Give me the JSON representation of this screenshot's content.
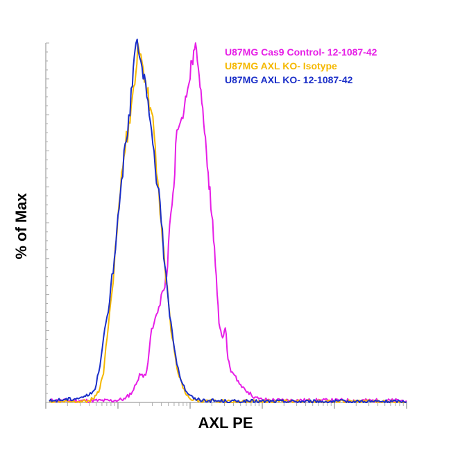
{
  "chart_data": {
    "type": "line",
    "title": "",
    "xlabel": "AXL PE",
    "ylabel": "% of Max",
    "x_scale": "log",
    "xlim": [
      0,
      100
    ],
    "ylim": [
      0,
      100
    ],
    "grid": false,
    "legend_position": "top-right",
    "series": [
      {
        "name": "U87MG Cas9 Control- 12-1087-42",
        "color": "#e61ee6",
        "points": [
          [
            1,
            0.5
          ],
          [
            19,
            0.5
          ],
          [
            22,
            1
          ],
          [
            24,
            3
          ],
          [
            25,
            5
          ],
          [
            26,
            8
          ],
          [
            27,
            7
          ],
          [
            28,
            9
          ],
          [
            29,
            18
          ],
          [
            30,
            22
          ],
          [
            31,
            25
          ],
          [
            32,
            30
          ],
          [
            33,
            32
          ],
          [
            33.5,
            35
          ],
          [
            34,
            44
          ],
          [
            35,
            55
          ],
          [
            35.5,
            60
          ],
          [
            36,
            72
          ],
          [
            37,
            77
          ],
          [
            38,
            79
          ],
          [
            38.5,
            83
          ],
          [
            39,
            85
          ],
          [
            40,
            90
          ],
          [
            40.5,
            95
          ],
          [
            41,
            98
          ],
          [
            41.5,
            100
          ],
          [
            42,
            95
          ],
          [
            42.5,
            91
          ],
          [
            43,
            87
          ],
          [
            43.5,
            82
          ],
          [
            44,
            75
          ],
          [
            44.5,
            70
          ],
          [
            45,
            64
          ],
          [
            45.5,
            60
          ],
          [
            46,
            52
          ],
          [
            46.5,
            45
          ],
          [
            47,
            38
          ],
          [
            47.5,
            30
          ],
          [
            48,
            22
          ],
          [
            48.5,
            20
          ],
          [
            49,
            18
          ],
          [
            49.5,
            20
          ],
          [
            50,
            19
          ],
          [
            50.5,
            12
          ],
          [
            51,
            10
          ],
          [
            52,
            8
          ],
          [
            53,
            6
          ],
          [
            54,
            5
          ],
          [
            55,
            4
          ],
          [
            56,
            3
          ],
          [
            57,
            2
          ],
          [
            58,
            1.5
          ],
          [
            59,
            1
          ],
          [
            60,
            0.8
          ],
          [
            62,
            0.7
          ],
          [
            65,
            0.6
          ],
          [
            100,
            0.5
          ]
        ]
      },
      {
        "name": "U87MG AXL KO- Isotype",
        "color": "#f5b800",
        "points": [
          [
            1,
            0.2
          ],
          [
            12,
            0.5
          ],
          [
            13,
            1
          ],
          [
            14,
            2
          ],
          [
            15,
            4
          ],
          [
            16,
            8
          ],
          [
            17,
            18
          ],
          [
            18,
            28
          ],
          [
            19,
            38
          ],
          [
            19.5,
            45
          ],
          [
            20,
            52
          ],
          [
            21,
            64
          ],
          [
            22,
            70
          ],
          [
            23,
            78
          ],
          [
            24,
            85
          ],
          [
            25,
            92
          ],
          [
            25.5,
            100
          ],
          [
            26,
            97
          ],
          [
            27,
            93
          ],
          [
            28,
            86
          ],
          [
            29,
            82
          ],
          [
            30,
            75
          ],
          [
            31,
            62
          ],
          [
            32,
            50
          ],
          [
            33,
            38
          ],
          [
            34,
            28
          ],
          [
            35,
            18
          ],
          [
            36,
            12
          ],
          [
            37,
            7
          ],
          [
            38,
            4
          ],
          [
            39,
            2
          ],
          [
            40,
            1
          ],
          [
            42,
            0.5
          ],
          [
            45,
            0.3
          ],
          [
            100,
            0.2
          ]
        ]
      },
      {
        "name": "U87MG AXL KO- 12-1087-42",
        "color": "#1a2ec8",
        "points": [
          [
            1,
            0.3
          ],
          [
            2,
            0.5
          ],
          [
            5,
            0.8
          ],
          [
            8,
            1
          ],
          [
            10,
            1.5
          ],
          [
            12,
            2
          ],
          [
            13,
            3
          ],
          [
            14,
            5
          ],
          [
            15,
            10
          ],
          [
            16,
            18
          ],
          [
            17,
            24
          ],
          [
            18,
            32
          ],
          [
            19,
            40
          ],
          [
            20,
            52
          ],
          [
            21,
            62
          ],
          [
            22,
            72
          ],
          [
            23,
            80
          ],
          [
            24,
            88
          ],
          [
            24.5,
            96
          ],
          [
            25,
            100
          ],
          [
            26,
            96
          ],
          [
            27,
            90
          ],
          [
            28,
            85
          ],
          [
            29,
            78
          ],
          [
            30,
            70
          ],
          [
            31,
            60
          ],
          [
            32,
            50
          ],
          [
            33,
            38
          ],
          [
            34,
            28
          ],
          [
            35,
            20
          ],
          [
            36,
            13
          ],
          [
            37,
            8
          ],
          [
            38,
            5
          ],
          [
            39,
            3
          ],
          [
            40,
            2
          ],
          [
            41,
            1
          ],
          [
            42,
            0.8
          ],
          [
            45,
            0.5
          ],
          [
            50,
            0.3
          ],
          [
            100,
            0.2
          ]
        ]
      }
    ]
  }
}
